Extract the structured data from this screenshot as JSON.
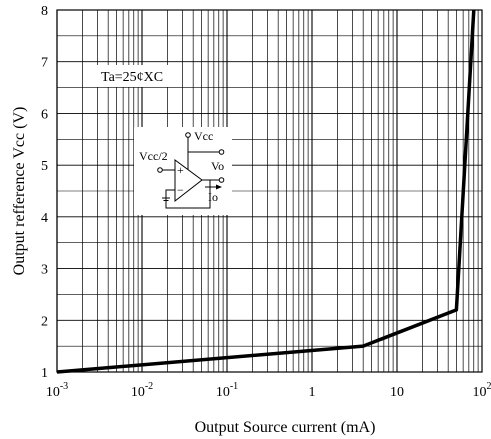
{
  "chart_data": {
    "type": "line",
    "xlabel": "Output Source current  (mA)",
    "ylabel": "Output refference Vcc  (V)",
    "x_scale": "log",
    "xlim": [
      0.001,
      100
    ],
    "ylim": [
      1,
      8
    ],
    "x_ticks": [
      {
        "value": 0.001,
        "base": "10",
        "exp": "-3"
      },
      {
        "value": 0.01,
        "base": "10",
        "exp": "-2"
      },
      {
        "value": 0.1,
        "base": "10",
        "exp": "-1"
      },
      {
        "value": 1,
        "base": "1",
        "exp": ""
      },
      {
        "value": 10,
        "base": "10",
        "exp": ""
      },
      {
        "value": 100,
        "base": "10",
        "exp": "2"
      }
    ],
    "y_ticks": [
      "1",
      "2",
      "3",
      "4",
      "5",
      "6",
      "7",
      "8"
    ],
    "grid": true,
    "annotation": "Ta=25¢XC",
    "series": [
      {
        "color": "#000000",
        "x": [
          0.001,
          4,
          50,
          80
        ],
        "y": [
          1.0,
          1.5,
          2.2,
          8.0
        ]
      }
    ],
    "inset": {
      "vcc_label": "Vcc",
      "vcc2_label": "Vcc/2",
      "vo_label": "Vo",
      "io_label": "Io",
      "plus_sign": "+",
      "minus_sign": "−"
    }
  }
}
